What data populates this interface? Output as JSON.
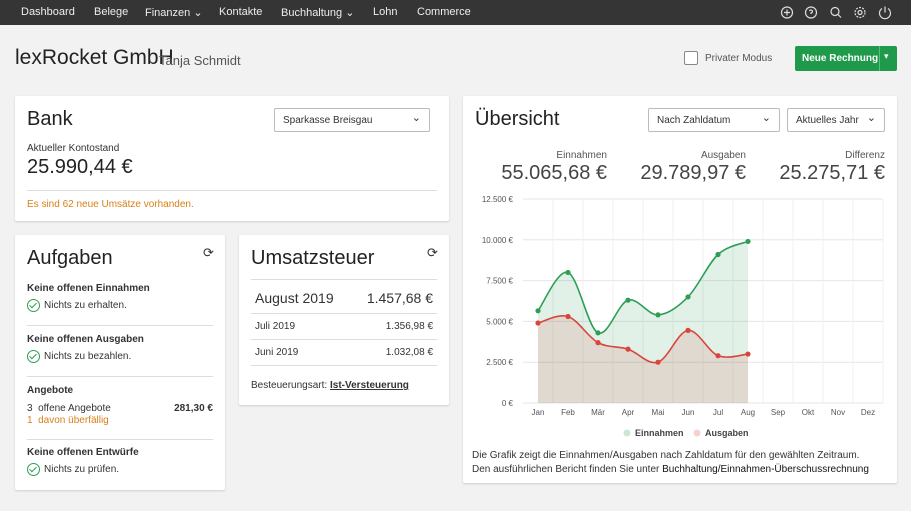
{
  "nav": {
    "items": [
      "Dashboard",
      "Belege",
      "Finanzen",
      "Kontakte",
      "Buchhaltung",
      "Lohn",
      "Commerce"
    ]
  },
  "header": {
    "company": "lexRocket GmbH",
    "user": "Tanja Schmidt",
    "private_mode": "Privater Modus",
    "new_invoice": "Neue Rechnung"
  },
  "bank": {
    "title": "Bank",
    "account": "Sparkasse Breisgau",
    "balance_label": "Aktueller Kontostand",
    "balance": "25.990,44 €",
    "notice": "Es sind 62 neue Umsätze vorhanden."
  },
  "tasks": {
    "title": "Aufgaben",
    "income": {
      "heading": "Keine offenen Einnahmen",
      "text": "Nichts zu erhalten."
    },
    "expenses": {
      "heading": "Keine offenen Ausgaben",
      "text": "Nichts zu bezahlen."
    },
    "offers": {
      "heading": "Angebote",
      "count": "3",
      "count_text": "offene Angebote",
      "amount": "281,30 €",
      "overdue": "1",
      "overdue_text": "davon überfällig"
    },
    "drafts": {
      "heading": "Keine offenen Entwürfe",
      "text": "Nichts zu prüfen."
    }
  },
  "vat": {
    "title": "Umsatzsteuer",
    "current": {
      "period": "August 2019",
      "amount": "1.457,68 €"
    },
    "rows": [
      {
        "period": "Juli 2019",
        "amount": "1.356,98 €"
      },
      {
        "period": "Juni 2019",
        "amount": "1.032,08 €"
      }
    ],
    "basis_label": "Besteuerungsart:",
    "basis": "Ist-Versteuerung"
  },
  "overview": {
    "title": "Übersicht",
    "filter_date": "Nach Zahldatum",
    "filter_period": "Aktuelles Jahr",
    "totals": [
      {
        "label": "Einnahmen",
        "value": "55.065,68 €"
      },
      {
        "label": "Ausgaben",
        "value": "29.789,97 €"
      },
      {
        "label": "Differenz",
        "value": "25.275,71 €"
      }
    ],
    "note": "Die Grafik zeigt die Einnahmen/Ausgaben nach Zahldatum für den gewählten Zeitraum. Den ausführlichen Bericht finden Sie unter",
    "note_link": "Buchhaltung/Einnahmen-Überschussrechnung"
  },
  "chart_data": {
    "type": "line",
    "categories": [
      "Jan",
      "Feb",
      "Mär",
      "Apr",
      "Mai",
      "Jun",
      "Jul",
      "Aug",
      "Sep",
      "Okt",
      "Nov",
      "Dez"
    ],
    "series": [
      {
        "name": "Einnahmen",
        "color": "#2e9e55",
        "values": [
          5650,
          8000,
          4300,
          6300,
          5400,
          6500,
          9100,
          9900,
          null,
          null,
          null,
          null
        ]
      },
      {
        "name": "Ausgaben",
        "color": "#d9453d",
        "values": [
          4900,
          5300,
          3700,
          3300,
          2500,
          4450,
          2900,
          3000,
          null,
          null,
          null,
          null
        ]
      }
    ],
    "ylim": [
      0,
      12500
    ],
    "yticks": [
      {
        "value": 0,
        "label": "0 €"
      },
      {
        "value": 2500,
        "label": "2.500 €"
      },
      {
        "value": 5000,
        "label": "5.000 €"
      },
      {
        "value": 7500,
        "label": "7.500 €"
      },
      {
        "value": 10000,
        "label": "10.000 €"
      },
      {
        "value": 12500,
        "label": "12.500 €"
      }
    ],
    "grid": true,
    "legend": "bottom"
  }
}
